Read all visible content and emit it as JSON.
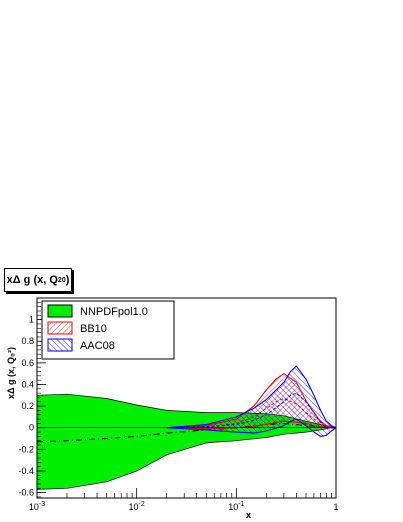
{
  "chart_data": {
    "type": "area",
    "title": "xΔ g (x, Q",
    "title_sup": "2",
    "title_sub": "0",
    "title_close": ")",
    "xlabel": "x",
    "ylabel": "xΔ g (x, Q₀²)",
    "xscale": "log",
    "xlim": [
      0.001,
      1
    ],
    "ylim": [
      -0.65,
      1.2
    ],
    "x_ticks": [
      {
        "value": 0.001,
        "base": "10",
        "exp": "-3"
      },
      {
        "value": 0.01,
        "base": "10",
        "exp": "-2"
      },
      {
        "value": 0.1,
        "base": "10",
        "exp": "-1"
      },
      {
        "value": 1,
        "base": "1",
        "exp": ""
      }
    ],
    "y_ticks": [
      {
        "value": -0.6,
        "label": "-0.6"
      },
      {
        "value": -0.4,
        "label": "-0.4"
      },
      {
        "value": -0.2,
        "label": "-0.2"
      },
      {
        "value": 0,
        "label": "0"
      },
      {
        "value": 0.2,
        "label": "0.2"
      },
      {
        "value": 0.4,
        "label": "0.4"
      },
      {
        "value": 0.6,
        "label": "0.6"
      },
      {
        "value": 0.8,
        "label": "0.8"
      },
      {
        "value": 1,
        "label": "1"
      }
    ],
    "grid": false,
    "legend_position": "top-left",
    "series": [
      {
        "name": "NNPDFpol1.0",
        "style": "solid-band",
        "color": "#00ee00",
        "x": [
          0.001,
          0.002,
          0.005,
          0.01,
          0.02,
          0.05,
          0.1,
          0.2,
          0.3,
          0.5,
          0.7,
          0.9,
          1.0
        ],
        "upper": [
          0.3,
          0.31,
          0.27,
          0.21,
          0.16,
          0.14,
          0.14,
          0.13,
          0.11,
          0.06,
          0.03,
          0.0,
          0.0
        ],
        "lower": [
          -0.57,
          -0.56,
          -0.5,
          -0.4,
          -0.25,
          -0.14,
          -0.12,
          -0.09,
          -0.06,
          -0.04,
          -0.02,
          0.0,
          0.0
        ],
        "central": [
          -0.13,
          -0.12,
          -0.1,
          -0.08,
          -0.05,
          -0.02,
          0.0,
          0.03,
          0.04,
          0.02,
          0.01,
          0.0,
          0.0
        ]
      },
      {
        "name": "BB10",
        "style": "hatched-band",
        "color": "#ff0000",
        "x": [
          0.02,
          0.05,
          0.1,
          0.15,
          0.2,
          0.25,
          0.3,
          0.4,
          0.5,
          0.6,
          0.7,
          0.8,
          1.0
        ],
        "upper": [
          0.0,
          0.02,
          0.08,
          0.2,
          0.35,
          0.45,
          0.5,
          0.42,
          0.25,
          0.14,
          0.06,
          0.02,
          0.0
        ],
        "lower": [
          0.0,
          -0.01,
          0.0,
          0.01,
          0.03,
          0.05,
          0.06,
          0.05,
          0.04,
          0.02,
          0.01,
          0.0,
          0.0
        ],
        "central": [
          0.0,
          0.0,
          0.04,
          0.1,
          0.18,
          0.24,
          0.27,
          0.22,
          0.14,
          0.08,
          0.03,
          0.01,
          0.0
        ]
      },
      {
        "name": "AAC08",
        "style": "hatched-band",
        "color": "#0000ff",
        "x": [
          0.02,
          0.05,
          0.1,
          0.15,
          0.2,
          0.3,
          0.35,
          0.4,
          0.5,
          0.6,
          0.7,
          0.8,
          0.9,
          1.0
        ],
        "upper": [
          0.0,
          0.03,
          0.1,
          0.18,
          0.26,
          0.42,
          0.52,
          0.57,
          0.45,
          0.3,
          0.16,
          0.06,
          0.02,
          0.0
        ],
        "lower": [
          0.0,
          -0.02,
          -0.04,
          -0.05,
          -0.03,
          0.02,
          0.06,
          0.08,
          0.02,
          -0.04,
          -0.08,
          -0.07,
          -0.03,
          0.0
        ],
        "central": [
          0.0,
          0.01,
          0.03,
          0.07,
          0.12,
          0.24,
          0.3,
          0.32,
          0.24,
          0.14,
          0.05,
          0.0,
          0.0,
          0.0
        ]
      }
    ]
  }
}
